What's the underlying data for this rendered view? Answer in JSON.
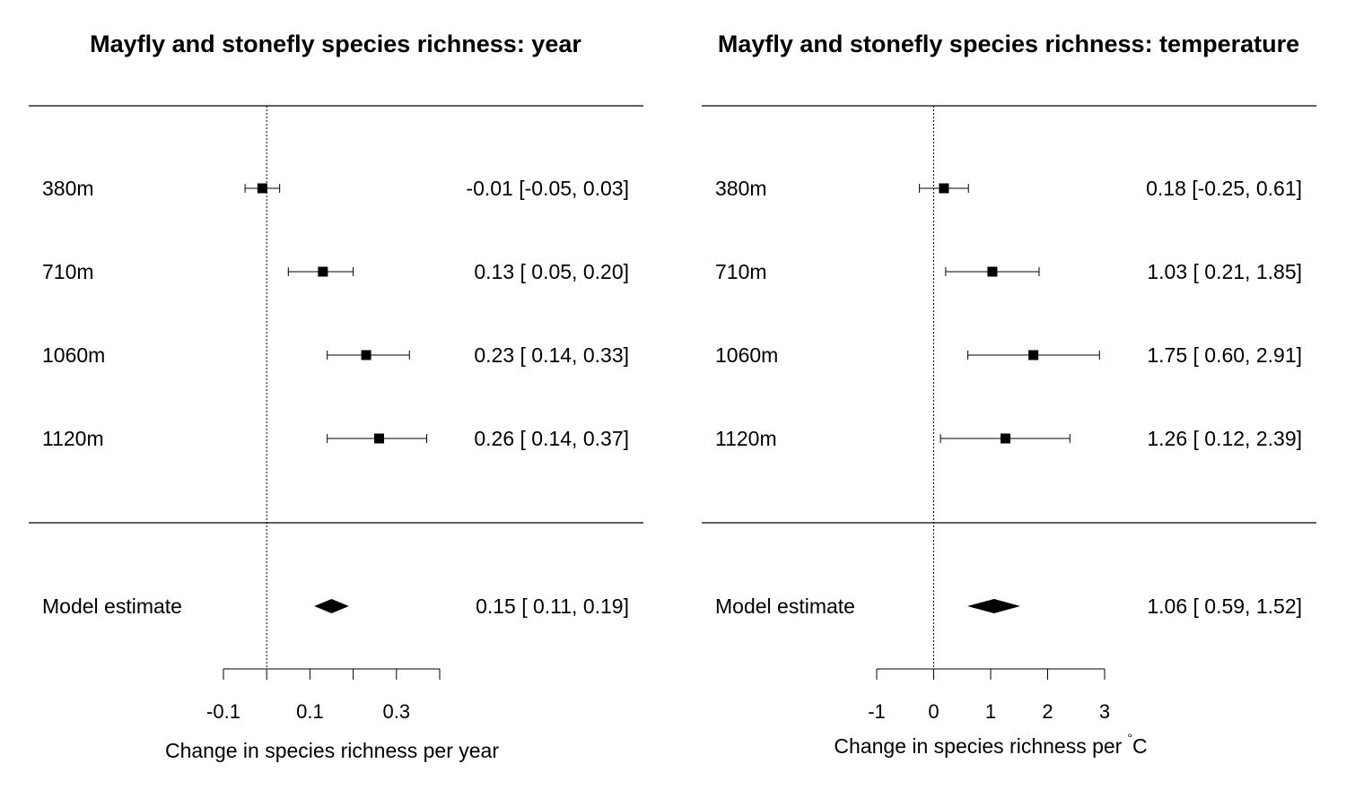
{
  "chart_data": [
    {
      "type": "forest",
      "title": "Mayfly and stonefly species richness: year",
      "xlabel": "Change in species richness per year",
      "xlim": [
        -0.1,
        0.4
      ],
      "xticks": [
        -0.1,
        0,
        0.1,
        0.2,
        0.3,
        0.4
      ],
      "xtick_labels": [
        "-0.1",
        "",
        "0.1",
        "",
        "0.3",
        ""
      ],
      "rows": [
        {
          "label": "380m",
          "estimate": -0.01,
          "lower": -0.05,
          "upper": 0.03,
          "text": "-0.01 [-0.05, 0.03]"
        },
        {
          "label": "710m",
          "estimate": 0.13,
          "lower": 0.05,
          "upper": 0.2,
          "text": "0.13 [ 0.05, 0.20]"
        },
        {
          "label": "1060m",
          "estimate": 0.23,
          "lower": 0.14,
          "upper": 0.33,
          "text": "0.23 [ 0.14, 0.33]"
        },
        {
          "label": "1120m",
          "estimate": 0.26,
          "lower": 0.14,
          "upper": 0.37,
          "text": "0.26 [ 0.14, 0.37]"
        }
      ],
      "summary": {
        "label": "Model estimate",
        "estimate": 0.15,
        "lower": 0.11,
        "upper": 0.19,
        "text": "0.15 [ 0.11, 0.19]"
      }
    },
    {
      "type": "forest",
      "title": "Mayfly and stonefly species richness: temperature",
      "xlabel": "Change in species richness per",
      "xlabel_unit": "C",
      "xlabel_degree": "°",
      "xlim": [
        -1,
        3
      ],
      "xticks": [
        -1,
        0,
        1,
        2,
        3
      ],
      "xtick_labels": [
        "-1",
        "0",
        "1",
        "2",
        "3"
      ],
      "rows": [
        {
          "label": "380m",
          "estimate": 0.18,
          "lower": -0.25,
          "upper": 0.61,
          "text": "0.18 [-0.25, 0.61]"
        },
        {
          "label": "710m",
          "estimate": 1.03,
          "lower": 0.21,
          "upper": 1.85,
          "text": "1.03 [ 0.21, 1.85]"
        },
        {
          "label": "1060m",
          "estimate": 1.75,
          "lower": 0.6,
          "upper": 2.91,
          "text": "1.75 [ 0.60, 2.91]"
        },
        {
          "label": "1120m",
          "estimate": 1.26,
          "lower": 0.12,
          "upper": 2.39,
          "text": "1.26 [ 0.12, 2.39]"
        }
      ],
      "summary": {
        "label": "Model estimate",
        "estimate": 1.06,
        "lower": 0.59,
        "upper": 1.52,
        "text": "1.06 [ 0.59, 1.52]"
      }
    }
  ]
}
